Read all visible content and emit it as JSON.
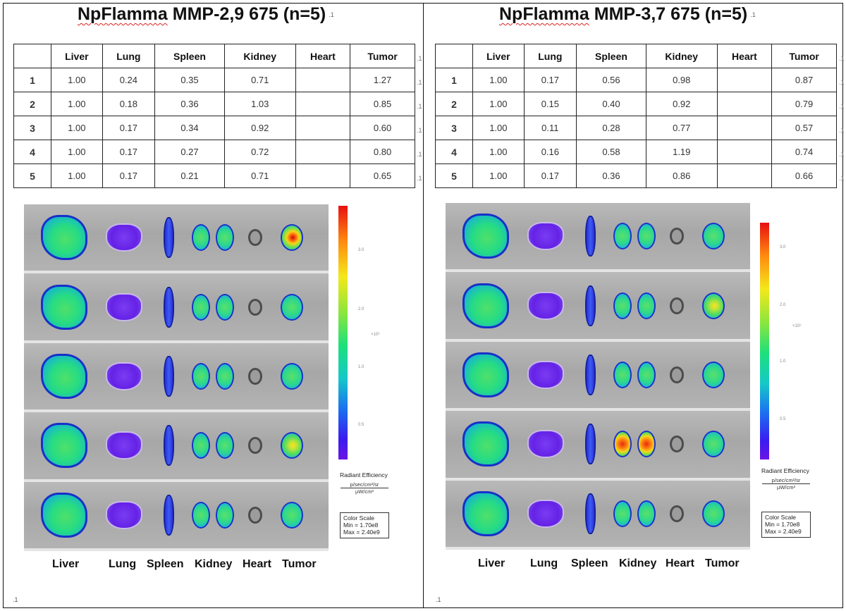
{
  "headers": [
    "",
    "Liver",
    "Lung",
    "Spleen",
    "Kidney",
    "Heart",
    "Tumor"
  ],
  "left": {
    "title_brand": "NpFlamma",
    "title_rest": " MMP-2,9 675 (n=5)",
    "rows": [
      [
        "1",
        "1.00",
        "0.24",
        "0.35",
        "0.71",
        "",
        "1.27"
      ],
      [
        "2",
        "1.00",
        "0.18",
        "0.36",
        "1.03",
        "",
        "0.85"
      ],
      [
        "3",
        "1.00",
        "0.17",
        "0.34",
        "0.92",
        "",
        "0.60"
      ],
      [
        "4",
        "1.00",
        "0.17",
        "0.27",
        "0.72",
        "",
        "0.80"
      ],
      [
        "5",
        "1.00",
        "0.17",
        "0.21",
        "0.71",
        "",
        "0.65"
      ]
    ],
    "scale_ticks": [
      "3.0",
      "2.0",
      "1.0",
      "0.5"
    ],
    "scale_unit": "×10⁹",
    "radiant_label": "Radiant Efficiency",
    "radiant_num": "p/sec/cm²/sr",
    "radiant_den": "µW/cm²",
    "color_scale_title": "Color Scale",
    "color_min": "Min = 1.70e8",
    "color_max": "Max = 2.40e9"
  },
  "right": {
    "title_brand": "NpFlamma",
    "title_rest": " MMP-3,7 675 (n=5)",
    "rows": [
      [
        "1",
        "1.00",
        "0.17",
        "0.56",
        "0.98",
        "",
        "0.87"
      ],
      [
        "2",
        "1.00",
        "0.15",
        "0.40",
        "0.92",
        "",
        "0.79"
      ],
      [
        "3",
        "1.00",
        "0.11",
        "0.28",
        "0.77",
        "",
        "0.57"
      ],
      [
        "4",
        "1.00",
        "0.16",
        "0.58",
        "1.19",
        "",
        "0.74"
      ],
      [
        "5",
        "1.00",
        "0.17",
        "0.36",
        "0.86",
        "",
        "0.66"
      ]
    ],
    "scale_ticks": [
      "3.0",
      "2.0",
      "1.0",
      "0.5"
    ],
    "scale_unit": "×10⁹",
    "radiant_label": "Radiant Efficiency",
    "radiant_num": "p/sec/cm²/sr",
    "radiant_den": "µW/cm²",
    "color_scale_title": "Color Scale",
    "color_min": "Min = 1.70e8",
    "color_max": "Max = 2.40e9"
  },
  "organ_labels": [
    "Liver",
    "Lung",
    "Spleen",
    "Kidney",
    "Heart",
    "Tumor"
  ],
  "paragraph_mark": ".1",
  "title_mark": ".1"
}
